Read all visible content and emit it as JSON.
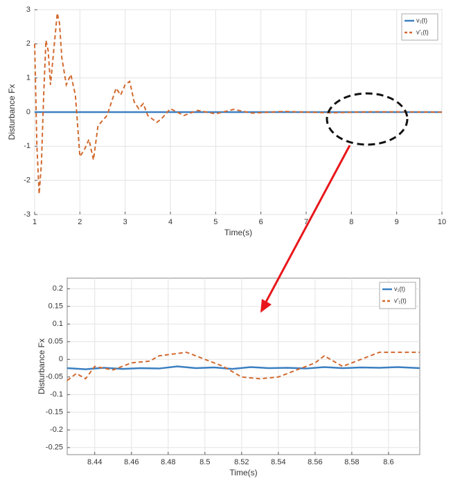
{
  "chart_data": [
    {
      "type": "line",
      "xlabel": "Time(s)",
      "ylabel": "Disturbance Fx",
      "xlim": [
        1,
        10
      ],
      "xticks": [
        1,
        2,
        3,
        4,
        5,
        6,
        7,
        8,
        9,
        10
      ],
      "ylim": [
        -3,
        3
      ],
      "yticks": [
        -3,
        -2,
        -1,
        0,
        1,
        2,
        3
      ],
      "grid": true,
      "legend": "upper-right",
      "series": [
        {
          "name": "v₁(t)",
          "color": "#3a7fc1",
          "dash": false,
          "x": [
            1,
            2,
            3,
            4,
            5,
            6,
            7,
            8,
            9,
            10
          ],
          "values": [
            0,
            0,
            0,
            0,
            0,
            0,
            0,
            0,
            0,
            0
          ]
        },
        {
          "name": "v'₁(t)",
          "color": "#d2692e",
          "dash": true,
          "x": [
            1,
            1.05,
            1.1,
            1.15,
            1.2,
            1.25,
            1.3,
            1.35,
            1.4,
            1.5,
            1.55,
            1.6,
            1.7,
            1.8,
            1.9,
            2.0,
            2.1,
            2.2,
            2.3,
            2.4,
            2.6,
            2.8,
            2.9,
            3.0,
            3.1,
            3.2,
            3.3,
            3.4,
            3.5,
            3.7,
            3.8,
            4.0,
            4.3,
            4.6,
            5.0,
            5.4,
            5.8,
            6.5,
            7.5,
            8.5,
            10
          ],
          "values": [
            2,
            -1,
            -2.4,
            -1.5,
            0.5,
            2.1,
            1.8,
            0.8,
            1.5,
            2.9,
            2.6,
            1.6,
            0.8,
            1.1,
            0.5,
            -1.3,
            -1.1,
            -0.8,
            -1.4,
            -0.4,
            -0.1,
            0.7,
            0.5,
            0.8,
            0.9,
            0.3,
            0.1,
            0.25,
            -0.1,
            -0.3,
            -0.2,
            0.1,
            -0.1,
            0.05,
            -0.05,
            0.08,
            -0.03,
            0.02,
            -0.02,
            0.01,
            0
          ]
        }
      ]
    },
    {
      "type": "line",
      "xlabel": "Time(s)",
      "ylabel": "Disturbance Fx",
      "xlim": [
        8.425,
        8.617
      ],
      "xticks": [
        8.44,
        8.46,
        8.48,
        8.5,
        8.52,
        8.54,
        8.56,
        8.58,
        8.6
      ],
      "ylim": [
        -0.27,
        0.23
      ],
      "yticks": [
        -0.25,
        -0.2,
        -0.15,
        -0.1,
        -0.05,
        0,
        0.05,
        0.1,
        0.15,
        0.2
      ],
      "grid": true,
      "legend": "upper-right",
      "series": [
        {
          "name": "v₁(t)",
          "color": "#3a7fc1",
          "dash": false,
          "x": [
            8.425,
            8.435,
            8.445,
            8.455,
            8.465,
            8.475,
            8.485,
            8.495,
            8.505,
            8.515,
            8.525,
            8.535,
            8.545,
            8.555,
            8.565,
            8.575,
            8.585,
            8.595,
            8.605,
            8.617
          ],
          "values": [
            -0.025,
            -0.028,
            -0.024,
            -0.027,
            -0.025,
            -0.026,
            -0.02,
            -0.025,
            -0.023,
            -0.027,
            -0.022,
            -0.025,
            -0.024,
            -0.026,
            -0.022,
            -0.025,
            -0.023,
            -0.024,
            -0.022,
            -0.025
          ]
        },
        {
          "name": "v'₁(t)",
          "color": "#d2692e",
          "dash": true,
          "x": [
            8.425,
            8.43,
            8.435,
            8.44,
            8.45,
            8.46,
            8.47,
            8.475,
            8.49,
            8.5,
            8.51,
            8.52,
            8.53,
            8.54,
            8.55,
            8.56,
            8.565,
            8.575,
            8.585,
            8.595,
            8.605,
            8.617
          ],
          "values": [
            -0.06,
            -0.04,
            -0.055,
            -0.02,
            -0.03,
            -0.01,
            -0.005,
            0.01,
            0.02,
            0.0,
            -0.02,
            -0.05,
            -0.055,
            -0.05,
            -0.03,
            -0.01,
            0.01,
            -0.02,
            0.0,
            0.02,
            0.02,
            0.02
          ]
        }
      ]
    }
  ]
}
